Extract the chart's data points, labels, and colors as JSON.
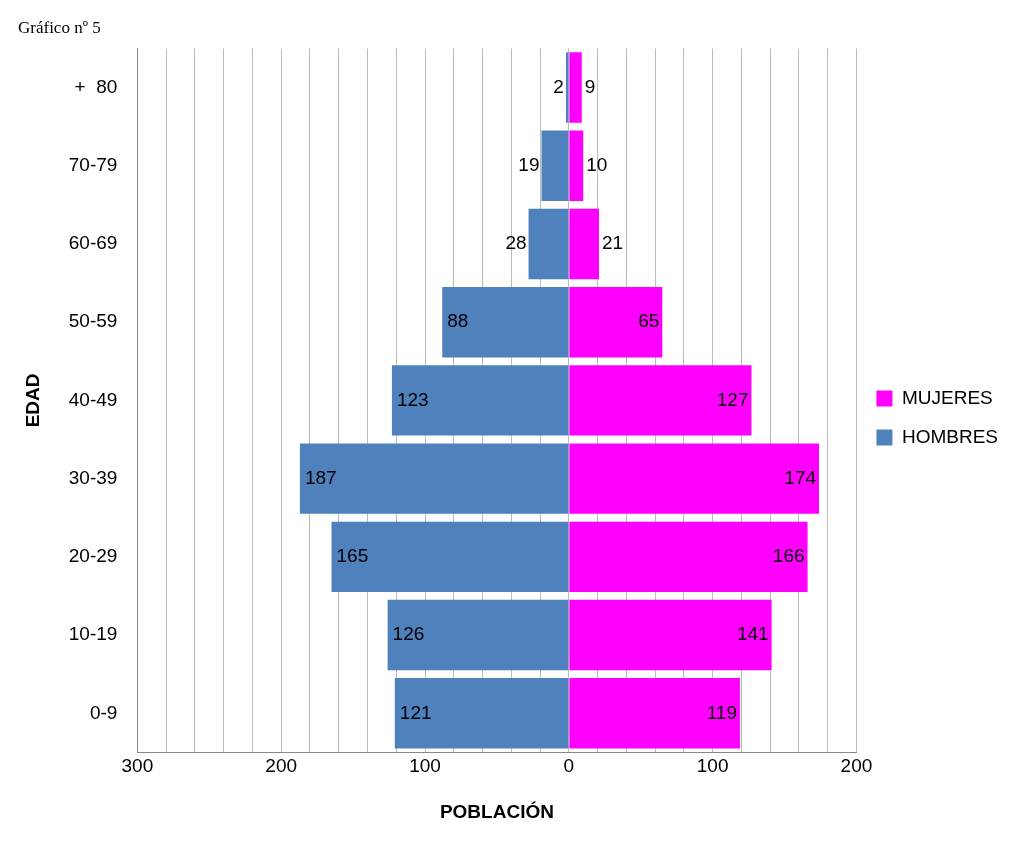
{
  "chart_data": {
    "type": "bar",
    "title": "Gráfico nº 5",
    "orientation": "horizontal",
    "categories": [
      "+  80",
      "70-79",
      "60-69",
      "50-59",
      "40-49",
      "30-39",
      "20-29",
      "10-19",
      "0-9"
    ],
    "series": [
      {
        "name": "HOMBRES",
        "color": "#4f81bd",
        "base": [
          -2,
          -19,
          -28,
          -88,
          -123,
          -187,
          -165,
          -126,
          -121
        ],
        "values": [
          2,
          19,
          28,
          88,
          123,
          187,
          165,
          126,
          121
        ],
        "value_labels": [
          "2",
          "19",
          "28",
          "88",
          "123",
          "187",
          "165",
          "126",
          "121"
        ]
      },
      {
        "name": "MUJERES",
        "color": "#ff00ff",
        "values": [
          9,
          10,
          21,
          65,
          127,
          174,
          166,
          141,
          119
        ],
        "value_labels": [
          "9",
          "10",
          "21",
          "65",
          "127",
          "174",
          "166",
          "141",
          "119"
        ]
      }
    ],
    "xlim": [
      -300,
      200
    ],
    "xticks": [
      {
        "value": -300,
        "label": "300"
      },
      {
        "value": -280,
        "label": null
      },
      {
        "value": -260,
        "label": null
      },
      {
        "value": -240,
        "label": null
      },
      {
        "value": -220,
        "label": null
      },
      {
        "value": -200,
        "label": "200"
      },
      {
        "value": -180,
        "label": null
      },
      {
        "value": -160,
        "label": null
      },
      {
        "value": -140,
        "label": null
      },
      {
        "value": -120,
        "label": null
      },
      {
        "value": -100,
        "label": "100"
      },
      {
        "value": -80,
        "label": null
      },
      {
        "value": -60,
        "label": null
      },
      {
        "value": -40,
        "label": null
      },
      {
        "value": -20,
        "label": null
      },
      0,
      {
        "value": 20,
        "label": null
      },
      {
        "value": 40,
        "label": null
      },
      {
        "value": 60,
        "label": null
      },
      {
        "value": 80,
        "label": null
      },
      100,
      {
        "value": 120,
        "label": null
      },
      {
        "value": 140,
        "label": null
      },
      {
        "value": 160,
        "label": null
      },
      {
        "value": 180,
        "label": null
      },
      200
    ],
    "xlabel": "POBLACIÓN",
    "ylabel": "EDAD",
    "grid": "x",
    "legend": "right"
  }
}
